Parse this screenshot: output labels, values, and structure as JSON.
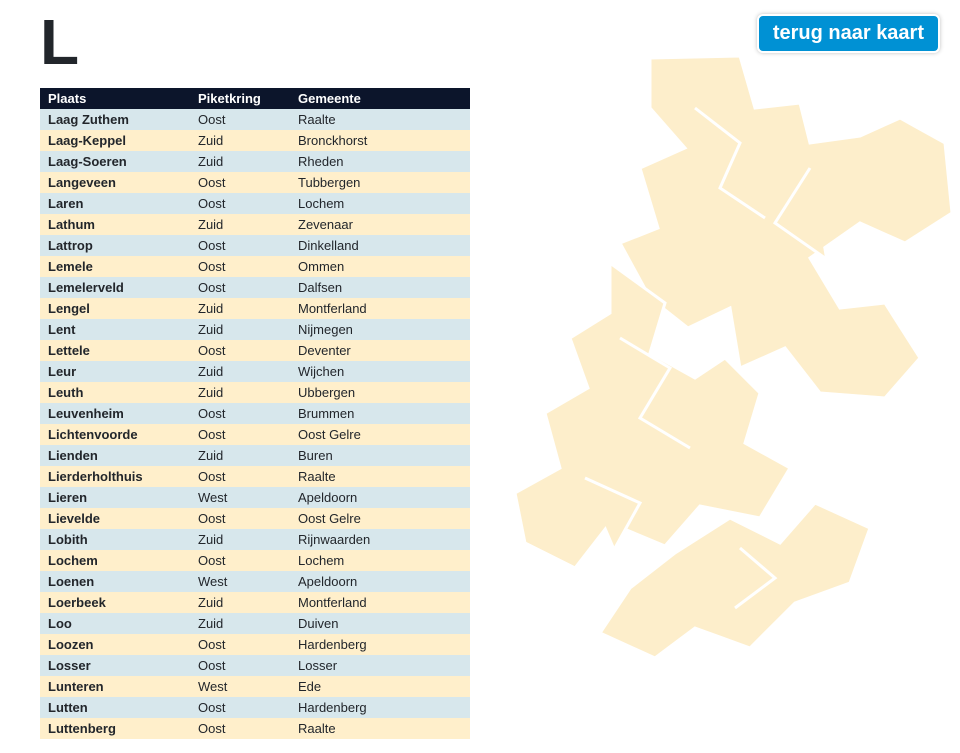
{
  "letter": "L",
  "back_button_label": "terug naar kaart",
  "columns": [
    "Plaats",
    "Piketkring",
    "Gemeente"
  ],
  "row_colors": {
    "a": "#d7e7ec",
    "b": "#ffefcb"
  },
  "header_bg": "#0c152b",
  "header_fg": "#ffffff",
  "button_bg": "#0091d4",
  "map_fill": "#fdeecb",
  "rows": [
    {
      "plaats": "Laag Zuthem",
      "piket": "Oost",
      "gem": "Raalte"
    },
    {
      "plaats": "Laag-Keppel",
      "piket": "Zuid",
      "gem": "Bronckhorst"
    },
    {
      "plaats": "Laag-Soeren",
      "piket": "Zuid",
      "gem": "Rheden"
    },
    {
      "plaats": "Langeveen",
      "piket": "Oost",
      "gem": "Tubbergen"
    },
    {
      "plaats": "Laren",
      "piket": "Oost",
      "gem": "Lochem"
    },
    {
      "plaats": "Lathum",
      "piket": "Zuid",
      "gem": "Zevenaar"
    },
    {
      "plaats": "Lattrop",
      "piket": "Oost",
      "gem": "Dinkelland"
    },
    {
      "plaats": "Lemele",
      "piket": "Oost",
      "gem": "Ommen"
    },
    {
      "plaats": "Lemelerveld",
      "piket": "Oost",
      "gem": "Dalfsen"
    },
    {
      "plaats": "Lengel",
      "piket": "Zuid",
      "gem": "Montferland"
    },
    {
      "plaats": "Lent",
      "piket": "Zuid",
      "gem": "Nijmegen"
    },
    {
      "plaats": "Lettele",
      "piket": "Oost",
      "gem": "Deventer"
    },
    {
      "plaats": "Leur",
      "piket": "Zuid",
      "gem": "Wijchen"
    },
    {
      "plaats": "Leuth",
      "piket": "Zuid",
      "gem": "Ubbergen"
    },
    {
      "plaats": "Leuvenheim",
      "piket": "Oost",
      "gem": "Brummen"
    },
    {
      "plaats": "Lichtenvoorde",
      "piket": "Oost",
      "gem": "Oost Gelre"
    },
    {
      "plaats": "Lienden",
      "piket": "Zuid",
      "gem": "Buren"
    },
    {
      "plaats": "Lierderholthuis",
      "piket": "Oost",
      "gem": "Raalte"
    },
    {
      "plaats": "Lieren",
      "piket": "West",
      "gem": "Apeldoorn"
    },
    {
      "plaats": "Lievelde",
      "piket": "Oost",
      "gem": "Oost Gelre"
    },
    {
      "plaats": "Lobith",
      "piket": "Zuid",
      "gem": "Rijnwaarden"
    },
    {
      "plaats": "Lochem",
      "piket": "Oost",
      "gem": "Lochem"
    },
    {
      "plaats": "Loenen",
      "piket": "West",
      "gem": "Apeldoorn"
    },
    {
      "plaats": "Loerbeek",
      "piket": "Zuid",
      "gem": "Montferland"
    },
    {
      "plaats": "Loo",
      "piket": "Zuid",
      "gem": "Duiven"
    },
    {
      "plaats": "Loozen",
      "piket": "Oost",
      "gem": "Hardenberg"
    },
    {
      "plaats": "Losser",
      "piket": "Oost",
      "gem": "Losser"
    },
    {
      "plaats": "Lunteren",
      "piket": "West",
      "gem": "Ede"
    },
    {
      "plaats": "Lutten",
      "piket": "Oost",
      "gem": "Hardenberg"
    },
    {
      "plaats": "Luttenberg",
      "piket": "Oost",
      "gem": "Raalte"
    }
  ]
}
